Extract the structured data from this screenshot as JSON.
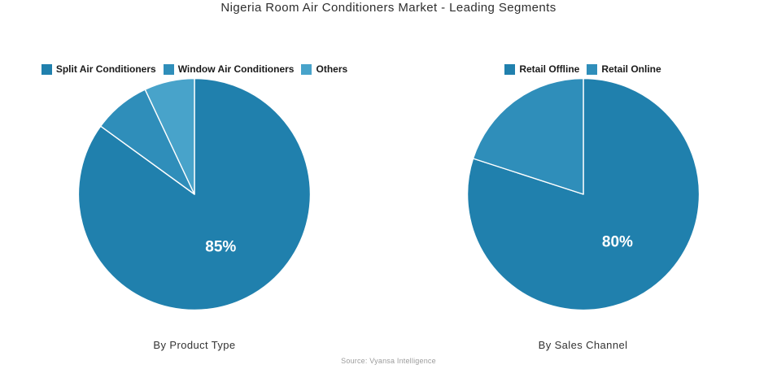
{
  "title": "Nigeria Room Air Conditioners Market - Leading Segments",
  "source": "Source: Vyansa Intelligence",
  "palette": {
    "primary": "#2080ad",
    "secondary": "#2f8eba",
    "tertiary": "#48a3ca",
    "data_label_color": "#ffffff",
    "background": "#ffffff"
  },
  "chart_data": [
    {
      "type": "pie",
      "title": "By Product Type",
      "legend_position": "top",
      "start_angle_deg": 0,
      "direction": "clockwise",
      "slices": [
        {
          "label": "Split Air Conditioners",
          "value": 85,
          "color": "#2080ad",
          "data_label": "85%"
        },
        {
          "label": "Window Air Conditioners",
          "value": 8,
          "color": "#2f8eba",
          "data_label": ""
        },
        {
          "label": "Others",
          "value": 7,
          "color": "#48a3ca",
          "data_label": ""
        }
      ]
    },
    {
      "type": "pie",
      "title": "By Sales Channel",
      "legend_position": "top",
      "start_angle_deg": 0,
      "direction": "clockwise",
      "slices": [
        {
          "label": "Retail Offline",
          "value": 80,
          "color": "#2080ad",
          "data_label": "80%"
        },
        {
          "label": "Retail Online",
          "value": 20,
          "color": "#2f8eba",
          "data_label": ""
        }
      ]
    }
  ]
}
